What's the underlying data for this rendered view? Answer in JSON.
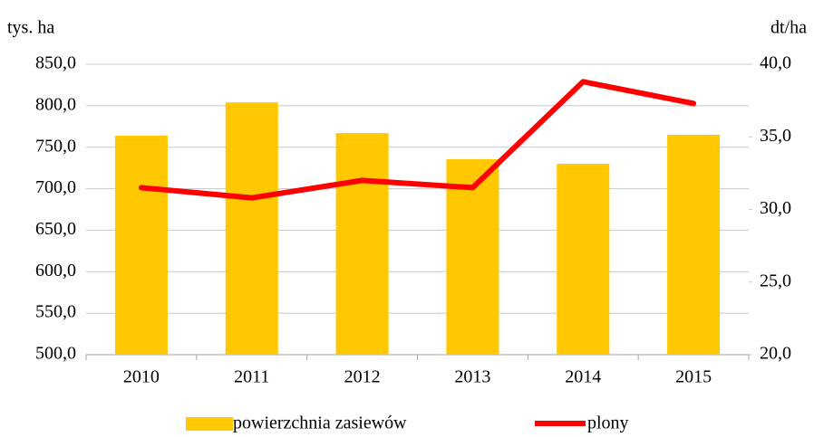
{
  "chart_data": {
    "type": "bar_line",
    "y_axis_label": "tys. ha",
    "y2_axis_label": "dt/ha",
    "categories": [
      "2010",
      "2011",
      "2012",
      "2013",
      "2014",
      "2015"
    ],
    "series": [
      {
        "name": "powierzchnia zasiewów",
        "type": "bar",
        "color": "#ffc800",
        "values": [
          764,
          804,
          767,
          735.5,
          730,
          765
        ]
      },
      {
        "name": "plony",
        "type": "line",
        "axis": "y2",
        "color": "#ff0000",
        "values": [
          31.5,
          30.8,
          32.0,
          31.5,
          38.8,
          37.3
        ]
      }
    ],
    "ylim": [
      500,
      850
    ],
    "yticks": [
      {
        "value": 500,
        "label": "500,0"
      },
      {
        "value": 550,
        "label": "550,0"
      },
      {
        "value": 600,
        "label": "600,0"
      },
      {
        "value": 650,
        "label": "650,0"
      },
      {
        "value": 700,
        "label": "700,0"
      },
      {
        "value": 750,
        "label": "750,0"
      },
      {
        "value": 800,
        "label": "800,0"
      },
      {
        "value": 850,
        "label": "850,0"
      }
    ],
    "y2lim": [
      20,
      40
    ],
    "y2ticks": [
      {
        "value": 20,
        "label": "20,0"
      },
      {
        "value": 25,
        "label": "25,0"
      },
      {
        "value": 30,
        "label": "30,0"
      },
      {
        "value": 35,
        "label": "35,0"
      },
      {
        "value": 40,
        "label": "40,0"
      }
    ],
    "grid": true,
    "legend": "bottom"
  }
}
